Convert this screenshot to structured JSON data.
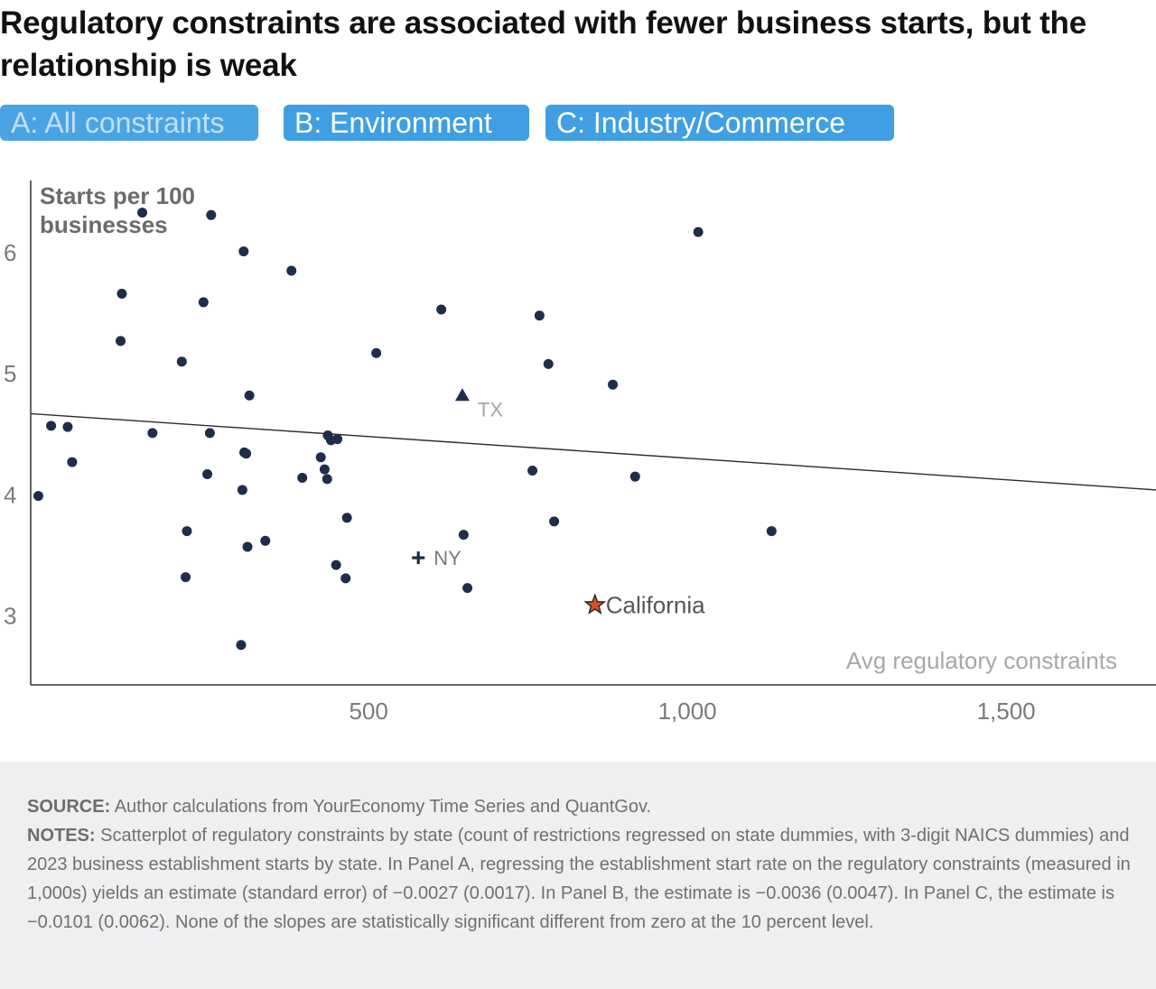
{
  "title": "Regulatory constraints are associated with fewer business starts, but the relationship is weak",
  "tabs": [
    {
      "label": "A: All constraints",
      "active": true
    },
    {
      "label": "B: Environment",
      "active": false
    },
    {
      "label": "C: Industry/Commerce",
      "active": false
    }
  ],
  "colors": {
    "points": "#1f2d4a",
    "accent_tab": "#3f9fe2",
    "california": "#d4551f",
    "footer_bg": "#eeeff1"
  },
  "chart_data": {
    "type": "scatter",
    "ylabel": "Starts per 100 businesses",
    "xlabel": "Avg regulatory constraints",
    "x_ticks": [
      {
        "value": 500,
        "label": "500"
      },
      {
        "value": 1000,
        "label": "1,000"
      },
      {
        "value": 1500,
        "label": "1,500"
      }
    ],
    "y_ticks": [
      {
        "value": 3,
        "label": "3"
      },
      {
        "value": 4,
        "label": "4"
      },
      {
        "value": 5,
        "label": "5"
      },
      {
        "value": 6,
        "label": "6"
      }
    ],
    "xlim": [
      -30,
      1735
    ],
    "ylim": [
      2.43,
      6.67
    ],
    "grid": false,
    "points": [
      [
        145,
        6.33
      ],
      [
        253,
        6.31
      ],
      [
        304,
        6.01
      ],
      [
        379,
        5.85
      ],
      [
        113,
        5.66
      ],
      [
        241,
        5.59
      ],
      [
        111,
        5.27
      ],
      [
        207,
        5.1
      ],
      [
        512,
        5.17
      ],
      [
        614,
        5.53
      ],
      [
        768,
        5.48
      ],
      [
        782,
        5.08
      ],
      [
        883,
        4.91
      ],
      [
        1017,
        6.17
      ],
      [
        313,
        4.82
      ],
      [
        2,
        4.57
      ],
      [
        28,
        4.56
      ],
      [
        35,
        4.27
      ],
      [
        161,
        4.51
      ],
      [
        251,
        4.51
      ],
      [
        247,
        4.17
      ],
      [
        305,
        4.35
      ],
      [
        308,
        4.34
      ],
      [
        302,
        4.04
      ],
      [
        436,
        4.49
      ],
      [
        441,
        4.45
      ],
      [
        451,
        4.46
      ],
      [
        425,
        4.31
      ],
      [
        431,
        4.21
      ],
      [
        435,
        4.13
      ],
      [
        396,
        4.14
      ],
      [
        757,
        4.2
      ],
      [
        918,
        4.15
      ],
      [
        466,
        3.81
      ],
      [
        649,
        3.67
      ],
      [
        791,
        3.78
      ],
      [
        1132,
        3.7
      ],
      [
        215,
        3.7
      ],
      [
        310,
        3.57
      ],
      [
        338,
        3.62
      ],
      [
        -18,
        3.99
      ],
      [
        449,
        3.42
      ],
      [
        464,
        3.31
      ],
      [
        213,
        3.32
      ],
      [
        655,
        3.23
      ],
      [
        300,
        2.76
      ]
    ],
    "highlights": [
      {
        "label": "TX",
        "marker": "triangle",
        "x": 647,
        "y": 4.82
      },
      {
        "label": "NY",
        "marker": "plus",
        "x": 578,
        "y": 3.48
      },
      {
        "label": "California",
        "marker": "star",
        "x": 855,
        "y": 3.09
      }
    ],
    "trendline": {
      "x": [
        -30,
        1735
      ],
      "y": [
        4.67,
        4.04
      ]
    }
  },
  "footer": {
    "source_label": "SOURCE:",
    "source_text": " Author calculations from YourEconomy Time Series and QuantGov.",
    "notes_label": "NOTES:",
    "notes_text": " Scatterplot of regulatory constraints by state (count of restrictions regressed on state dummies, with 3-digit NAICS dummies) and 2023 business establishment starts by state. In Panel A, regressing the establishment start rate on the regulatory constraints (measured in 1,000s) yields an estimate (standard error) of −0.0027 (0.0017). In Panel B, the estimate is −0.0036 (0.0047). In Panel C, the estimate is −0.0101 (0.0062). None of the slopes are statistically significant different from zero at the 10 percent level."
  }
}
